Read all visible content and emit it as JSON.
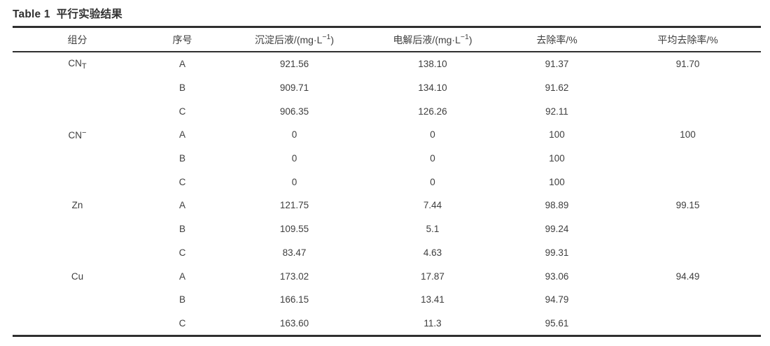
{
  "title": {
    "en": "Table 1",
    "zh": "平行实验结果"
  },
  "columns": {
    "component": "组分",
    "serial": "序号",
    "precipitation": {
      "prefix": "沉淀后液/(mg·L",
      "sup": "−1",
      "suffix": ")"
    },
    "electrolysis": {
      "prefix": "电解后液/(mg·L",
      "sup": "−1",
      "suffix": ")"
    },
    "removal": "去除率/%",
    "avg_removal": "平均去除率/%"
  },
  "groups": [
    {
      "component": {
        "base": "CN",
        "sub": "T"
      },
      "avg_removal": "91.70",
      "rows": [
        {
          "serial": "A",
          "precipitation": "921.56",
          "electrolysis": "138.10",
          "removal": "91.37"
        },
        {
          "serial": "B",
          "precipitation": "909.71",
          "electrolysis": "134.10",
          "removal": "91.62"
        },
        {
          "serial": "C",
          "precipitation": "906.35",
          "electrolysis": "126.26",
          "removal": "92.11"
        }
      ]
    },
    {
      "component": {
        "base": "CN",
        "sup": "−"
      },
      "avg_removal": "100",
      "rows": [
        {
          "serial": "A",
          "precipitation": "0",
          "electrolysis": "0",
          "removal": "100"
        },
        {
          "serial": "B",
          "precipitation": "0",
          "electrolysis": "0",
          "removal": "100"
        },
        {
          "serial": "C",
          "precipitation": "0",
          "electrolysis": "0",
          "removal": "100"
        }
      ]
    },
    {
      "component": {
        "base": "Zn"
      },
      "avg_removal": "99.15",
      "rows": [
        {
          "serial": "A",
          "precipitation": "121.75",
          "electrolysis": "7.44",
          "removal": "98.89"
        },
        {
          "serial": "B",
          "precipitation": "109.55",
          "electrolysis": "5.1",
          "removal": "99.24"
        },
        {
          "serial": "C",
          "precipitation": "83.47",
          "electrolysis": "4.63",
          "removal": "99.31"
        }
      ]
    },
    {
      "component": {
        "base": "Cu"
      },
      "avg_removal": "94.49",
      "rows": [
        {
          "serial": "A",
          "precipitation": "173.02",
          "electrolysis": "17.87",
          "removal": "93.06"
        },
        {
          "serial": "B",
          "precipitation": "166.15",
          "electrolysis": "13.41",
          "removal": "94.79"
        },
        {
          "serial": "C",
          "precipitation": "163.60",
          "electrolysis": "11.3",
          "removal": "95.61"
        }
      ]
    }
  ]
}
